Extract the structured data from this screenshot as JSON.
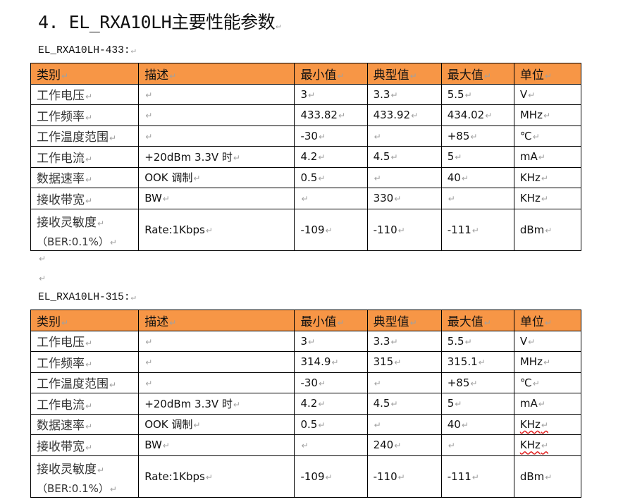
{
  "title": "4. EL_RXA10LH主要性能参数",
  "tables": [
    {
      "caption": "EL_RXA10LH-433:",
      "headers": [
        "类别",
        "描述",
        "最小值",
        "典型值",
        "最大值",
        "单位"
      ],
      "rows": [
        [
          "工作电压",
          "",
          "3",
          "3.3",
          "5.5",
          "V"
        ],
        [
          "工作频率",
          "",
          "433.82",
          "433.92",
          "434.02",
          "MHz"
        ],
        [
          "工作温度范围",
          "",
          "-30",
          "",
          "+85",
          "℃"
        ],
        [
          "工作电流",
          "+20dBm 3.3V 时",
          "4.2",
          "4.5",
          "5",
          "mA"
        ],
        [
          "数据速率",
          "OOK 调制",
          "0.5",
          "",
          "40",
          "KHz"
        ],
        [
          "接收带宽",
          "BW",
          "",
          "330",
          "",
          "KHz"
        ],
        [
          "接收灵敏度|（BER:0.1%）",
          "Rate:1Kbps",
          "-109",
          "-110",
          "-111",
          "dBm"
        ]
      ]
    },
    {
      "caption": "EL_RXA10LH-315:",
      "headers": [
        "类别",
        "描述",
        "最小值",
        "典型值",
        "最大值",
        "单位"
      ],
      "rows": [
        [
          "工作电压",
          "",
          "3",
          "3.3",
          "5.5",
          "V"
        ],
        [
          "工作频率",
          "",
          "314.9",
          "315",
          "315.1",
          "MHz"
        ],
        [
          "工作温度范围",
          "",
          "-30",
          "",
          "+85",
          "℃"
        ],
        [
          "工作电流",
          "+20dBm 3.3V 时",
          "4.2",
          "4.5",
          "5",
          "mA"
        ],
        [
          "数据速率",
          "OOK 调制",
          "0.5",
          "",
          "40",
          "KHz"
        ],
        [
          "接收带宽",
          "BW",
          "",
          "240",
          "",
          "KHz"
        ],
        [
          "接收灵敏度|（BER:0.1%）",
          "Rate:1Kbps",
          "-109",
          "-110",
          "-111",
          "dBm"
        ]
      ]
    }
  ],
  "colors": {
    "header_fill": "#f79646",
    "spellcheck_underline": "#e02020"
  }
}
